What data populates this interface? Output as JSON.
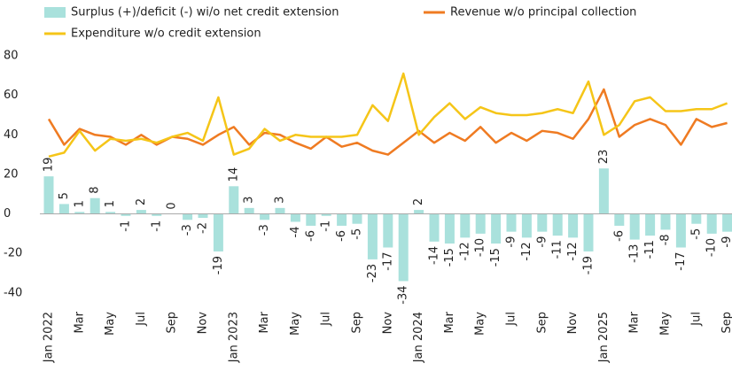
{
  "chart_data": {
    "type": "bar-line",
    "categories": [
      "Jan 2022",
      null,
      "Mar",
      null,
      "May",
      null,
      "Jul",
      null,
      "Sep",
      null,
      "Nov",
      null,
      "Jan 2023",
      null,
      "Mar",
      null,
      "May",
      null,
      "Jul",
      null,
      "Sep",
      null,
      "Nov",
      null,
      "Jan 2024",
      null,
      "Mar",
      null,
      "May",
      null,
      "Jul",
      null,
      "Sep",
      null,
      "Nov",
      null,
      "Jan 2025",
      null,
      "Mar",
      null,
      "May",
      null,
      "Jul",
      null,
      "Sep"
    ],
    "series": [
      {
        "name": "Surplus (+)/deficit (-) wi/o net credit extension",
        "kind": "bar",
        "color": "#a9e1dc",
        "values": [
          19,
          5,
          1,
          8,
          1,
          -1,
          2,
          -1,
          0,
          -3,
          -2,
          -19,
          14,
          3,
          -3,
          3,
          -4,
          -6,
          -1,
          -6,
          -5,
          -23,
          -17,
          -34,
          2,
          -14,
          -15,
          -12,
          -10,
          -15,
          -9,
          -12,
          -9,
          -11,
          -12,
          -19,
          23,
          -6,
          -13,
          -11,
          -8,
          -17,
          -5,
          -10,
          -9
        ]
      },
      {
        "name": "Revenue w/o principal collection",
        "kind": "line",
        "color": "#ef7b22",
        "values": [
          48,
          35,
          43,
          40,
          39,
          35,
          40,
          35,
          39,
          38,
          35,
          40,
          44,
          35,
          41,
          40,
          36,
          33,
          39,
          34,
          36,
          32,
          30,
          36,
          42,
          36,
          41,
          37,
          44,
          36,
          41,
          37,
          42,
          41,
          38,
          48,
          63,
          39,
          45,
          48,
          45,
          35,
          48,
          44,
          46
        ]
      },
      {
        "name": "Expenditure w/o credit extension",
        "kind": "line",
        "color": "#f5c518",
        "values": [
          29,
          31,
          42,
          32,
          38,
          37,
          38,
          36,
          39,
          41,
          37,
          59,
          30,
          33,
          43,
          37,
          40,
          39,
          39,
          39,
          40,
          55,
          47,
          71,
          40,
          49,
          56,
          48,
          54,
          51,
          50,
          50,
          51,
          53,
          51,
          67,
          40,
          45,
          57,
          59,
          52,
          52,
          53,
          53,
          56
        ]
      }
    ],
    "ylim": [
      -45,
      80
    ],
    "yticks": [
      -40,
      -20,
      0,
      20,
      40,
      60,
      80
    ],
    "grid": false,
    "legend": "top"
  }
}
